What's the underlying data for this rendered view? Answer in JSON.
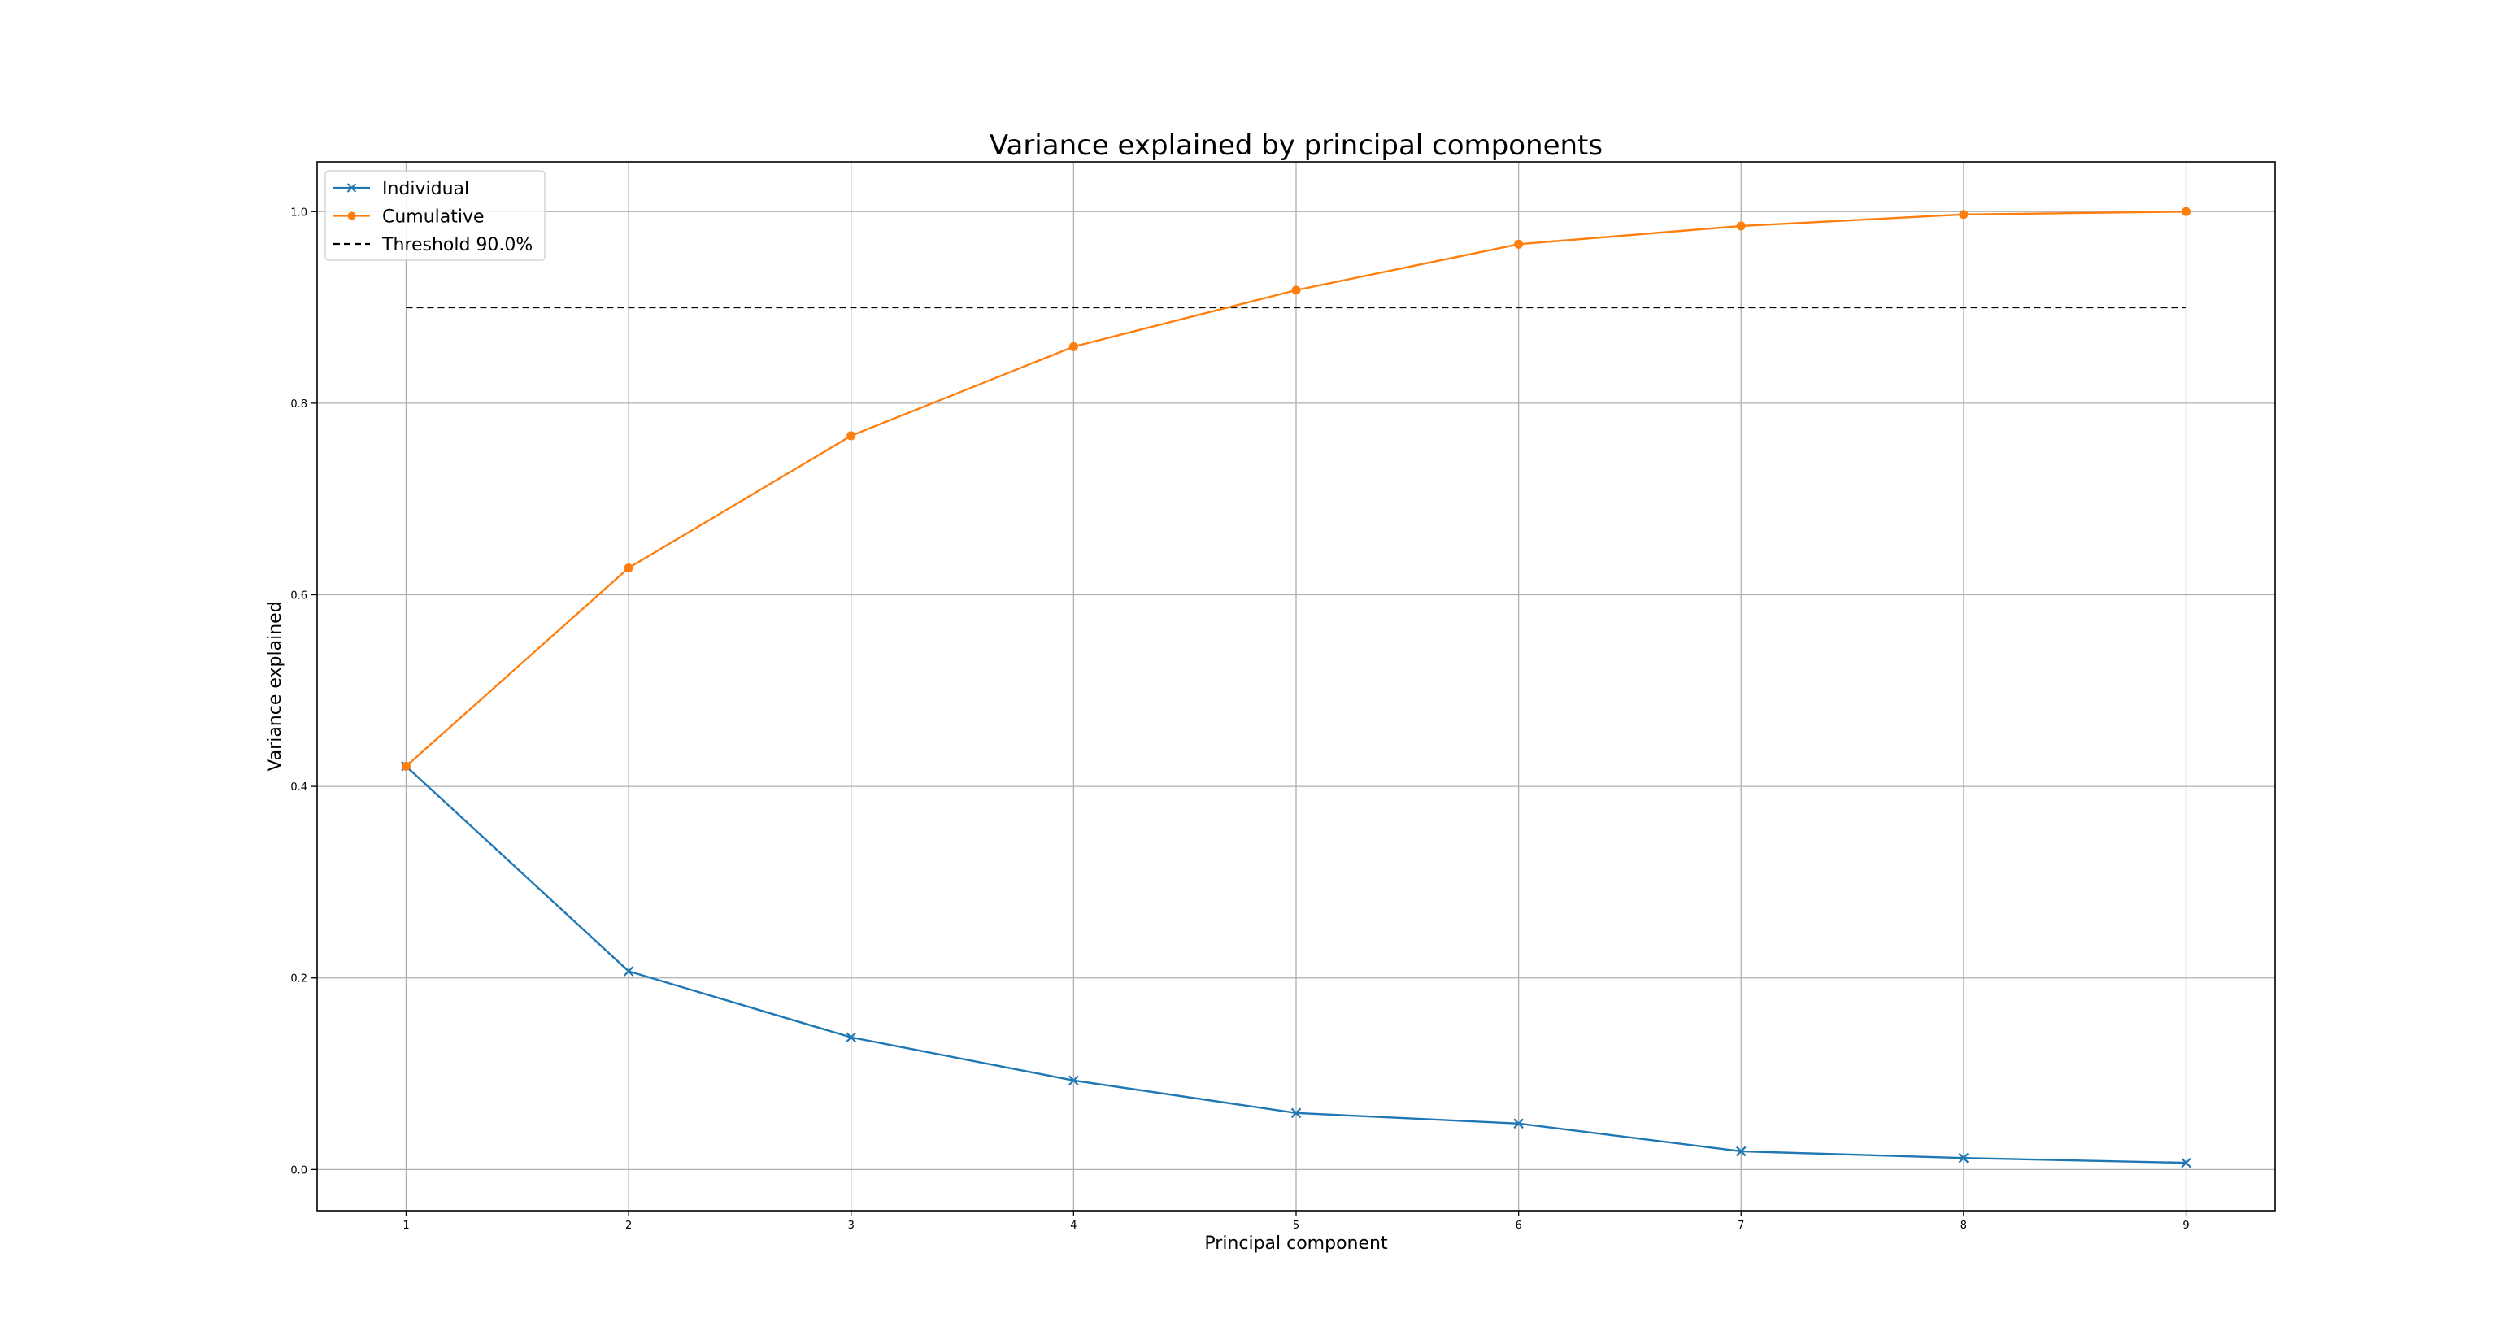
{
  "chart_data": {
    "type": "line",
    "title": "Variance explained by principal components",
    "xlabel": "Principal component",
    "ylabel": "Variance explained",
    "x": [
      1,
      2,
      3,
      4,
      5,
      6,
      7,
      8,
      9
    ],
    "xlim": [
      0.6,
      9.4
    ],
    "ylim": [
      -0.043,
      1.052
    ],
    "xticks": [
      "1",
      "2",
      "3",
      "4",
      "5",
      "6",
      "7",
      "8",
      "9"
    ],
    "yticks": [
      "0.0",
      "0.2",
      "0.4",
      "0.6",
      "0.8",
      "1.0"
    ],
    "grid": true,
    "legend_position": "top-left",
    "series": [
      {
        "name": "Individual",
        "color": "#1f77b4",
        "marker": "x",
        "values": [
          0.421,
          0.207,
          0.138,
          0.093,
          0.059,
          0.048,
          0.019,
          0.012,
          0.007
        ]
      },
      {
        "name": "Cumulative",
        "color": "#ff7f0e",
        "marker": "o",
        "values": [
          0.421,
          0.628,
          0.766,
          0.859,
          0.918,
          0.966,
          0.985,
          0.997,
          1.0
        ]
      }
    ],
    "threshold": {
      "name": "Threshold 90.0%",
      "value": 0.9,
      "color": "#000000",
      "style": "dashed",
      "x_range": [
        1,
        9
      ]
    }
  }
}
